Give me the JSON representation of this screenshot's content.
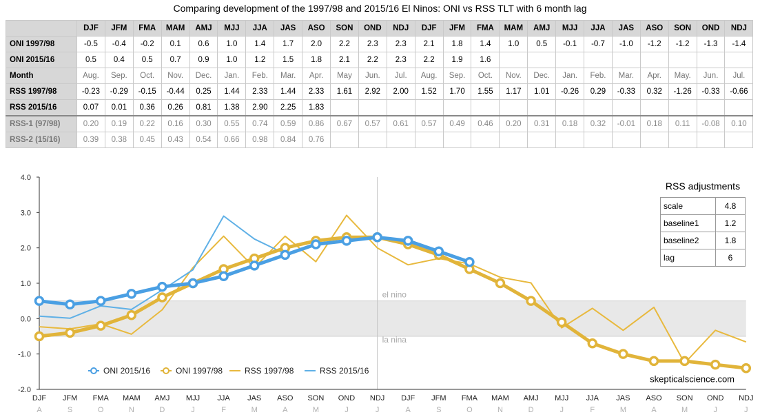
{
  "title": "Comparing development of the 1997/98 and 2015/16 El Ninos: ONI vs RSS TLT with 6 month lag",
  "table": {
    "columns": [
      "DJF",
      "JFM",
      "FMA",
      "MAM",
      "AMJ",
      "MJJ",
      "JJA",
      "JAS",
      "ASO",
      "SON",
      "OND",
      "NDJ",
      "DJF",
      "JFM",
      "FMA",
      "MAM",
      "AMJ",
      "MJJ",
      "JJA",
      "JAS",
      "ASO",
      "SON",
      "OND",
      "NDJ"
    ],
    "rows": [
      {
        "label": "ONI 1997/98",
        "cells": [
          "-0.5",
          "-0.4",
          "-0.2",
          "0.1",
          "0.6",
          "1.0",
          "1.4",
          "1.7",
          "2.0",
          "2.2",
          "2.3",
          "2.3",
          "2.1",
          "1.8",
          "1.4",
          "1.0",
          "0.5",
          "-0.1",
          "-0.7",
          "-1.0",
          "-1.2",
          "-1.2",
          "-1.3",
          "-1.4"
        ]
      },
      {
        "label": "ONI 2015/16",
        "cells": [
          "0.5",
          "0.4",
          "0.5",
          "0.7",
          "0.9",
          "1.0",
          "1.2",
          "1.5",
          "1.8",
          "2.1",
          "2.2",
          "2.3",
          "2.2",
          "1.9",
          "1.6",
          "",
          "",
          "",
          "",
          "",
          "",
          "",
          "",
          ""
        ]
      },
      {
        "label": "Month",
        "cells": [
          "Aug.",
          "Sep.",
          "Oct.",
          "Nov.",
          "Dec.",
          "Jan.",
          "Feb.",
          "Mar.",
          "Apr.",
          "May",
          "Jun.",
          "Jul.",
          "Aug.",
          "Sep.",
          "Oct.",
          "Nov.",
          "Dec.",
          "Jan.",
          "Feb.",
          "Mar.",
          "Apr.",
          "May.",
          "Jun.",
          "Jul."
        ]
      },
      {
        "label": "RSS 1997/98",
        "cells": [
          "-0.23",
          "-0.29",
          "-0.15",
          "-0.44",
          "0.25",
          "1.44",
          "2.33",
          "1.44",
          "2.33",
          "1.61",
          "2.92",
          "2.00",
          "1.52",
          "1.70",
          "1.55",
          "1.17",
          "1.01",
          "-0.26",
          "0.29",
          "-0.33",
          "0.32",
          "-1.26",
          "-0.33",
          "-0.66"
        ]
      },
      {
        "label": "RSS 2015/16",
        "cells": [
          "0.07",
          "0.01",
          "0.36",
          "0.26",
          "0.81",
          "1.38",
          "2.90",
          "2.25",
          "1.83",
          "",
          "",
          "",
          "",
          "",
          "",
          "",
          "",
          "",
          "",
          "",
          "",
          "",
          "",
          ""
        ]
      },
      {
        "label": "RSS-1 (97/98)",
        "cells": [
          "0.20",
          "0.19",
          "0.22",
          "0.16",
          "0.30",
          "0.55",
          "0.74",
          "0.59",
          "0.86",
          "0.67",
          "0.57",
          "0.61",
          "0.57",
          "0.49",
          "0.46",
          "0.20",
          "0.31",
          "0.18",
          "0.32",
          "-0.01",
          "0.18",
          "0.11",
          "-0.08",
          "0.10"
        ]
      },
      {
        "label": "RSS-2 (15/16)",
        "cells": [
          "0.39",
          "0.38",
          "0.45",
          "0.43",
          "0.54",
          "0.66",
          "0.98",
          "0.84",
          "0.76",
          "",
          "",
          "",
          "",
          "",
          "",
          "",
          "",
          "",
          "",
          "",
          "",
          "",
          "",
          ""
        ]
      }
    ]
  },
  "adjustments": {
    "title": "RSS adjustments",
    "rows": [
      {
        "label": "scale",
        "value": "4.8"
      },
      {
        "label": "baseline1",
        "value": "1.2"
      },
      {
        "label": "baseline2",
        "value": "1.8"
      },
      {
        "label": "lag",
        "value": "6"
      }
    ]
  },
  "chart_data": {
    "type": "line",
    "categories": [
      "DJF",
      "JFM",
      "FMA",
      "MAM",
      "AMJ",
      "MJJ",
      "JJA",
      "JAS",
      "ASO",
      "SON",
      "OND",
      "NDJ",
      "DJF",
      "JFM",
      "FMA",
      "MAM",
      "AMJ",
      "MJJ",
      "JJA",
      "JAS",
      "ASO",
      "SON",
      "OND",
      "NDJ"
    ],
    "month_labels": [
      "A",
      "S",
      "O",
      "N",
      "D",
      "J",
      "F",
      "M",
      "A",
      "M",
      "J",
      "J",
      "A",
      "S",
      "O",
      "N",
      "D",
      "J",
      "F",
      "M",
      "A",
      "M",
      "J",
      "J"
    ],
    "ylim": [
      -2.0,
      4.0
    ],
    "yticks": [
      "4.0",
      "3.0",
      "2.0",
      "1.0",
      "0.0",
      "-1.0",
      "-2.0"
    ],
    "grid": false,
    "legend_position": "bottom-left",
    "annotations": {
      "el_nino": "el nino",
      "la_nina": "la nina",
      "credit": "skepticalscience.com"
    },
    "band": [
      -0.5,
      0.5
    ],
    "vertical_marker_index": 11,
    "series": [
      {
        "name": "ONI 2015/16",
        "style": "marker-line",
        "color": "#4a9fe3",
        "values": [
          0.5,
          0.4,
          0.5,
          0.7,
          0.9,
          1.0,
          1.2,
          1.5,
          1.8,
          2.1,
          2.2,
          2.3,
          2.2,
          1.9,
          1.6,
          null,
          null,
          null,
          null,
          null,
          null,
          null,
          null,
          null
        ]
      },
      {
        "name": "ONI 1997/98",
        "style": "marker-line",
        "color": "#e1b43a",
        "values": [
          -0.5,
          -0.4,
          -0.2,
          0.1,
          0.6,
          1.0,
          1.4,
          1.7,
          2.0,
          2.2,
          2.3,
          2.3,
          2.1,
          1.8,
          1.4,
          1.0,
          0.5,
          -0.1,
          -0.7,
          -1.0,
          -1.2,
          -1.2,
          -1.3,
          -1.4
        ]
      },
      {
        "name": "RSS 1997/98",
        "style": "line",
        "color": "#e8b93e",
        "values": [
          -0.23,
          -0.29,
          -0.15,
          -0.44,
          0.25,
          1.44,
          2.33,
          1.44,
          2.33,
          1.61,
          2.92,
          2.0,
          1.52,
          1.7,
          1.55,
          1.17,
          1.01,
          -0.26,
          0.29,
          -0.33,
          0.32,
          -1.26,
          -0.33,
          -0.66
        ]
      },
      {
        "name": "RSS 2015/16",
        "style": "line",
        "color": "#5fb0e6",
        "values": [
          0.07,
          0.01,
          0.36,
          0.26,
          0.81,
          1.38,
          2.9,
          2.25,
          1.83,
          null,
          null,
          null,
          null,
          null,
          null,
          null,
          null,
          null,
          null,
          null,
          null,
          null,
          null,
          null
        ]
      }
    ]
  }
}
